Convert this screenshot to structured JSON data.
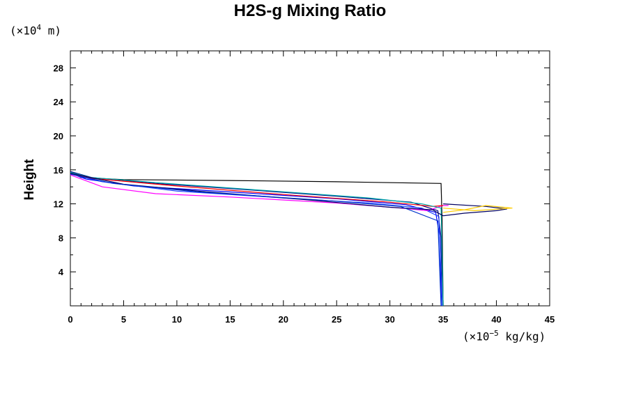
{
  "chart_data": {
    "type": "line",
    "title": "H2S-g Mixing Ratio",
    "ylabel": "Height",
    "y_unit_prefix": "(×10",
    "y_unit_exp": "4",
    "y_unit_suffix": " m)",
    "x_unit_prefix": "(×10",
    "x_unit_exp": "−5",
    "x_unit_suffix": " kg/kg)",
    "xlim": [
      0,
      45
    ],
    "ylim": [
      0,
      30
    ],
    "x_ticks": [
      0,
      5,
      10,
      15,
      20,
      25,
      30,
      35,
      40,
      45
    ],
    "y_ticks": [
      4,
      8,
      12,
      16,
      20,
      24,
      28
    ],
    "grid": false,
    "series": [
      {
        "color": "#000000",
        "points": [
          [
            0,
            15.7
          ],
          [
            1,
            15.1
          ],
          [
            5,
            14.85
          ],
          [
            15,
            14.75
          ],
          [
            25,
            14.6
          ],
          [
            34.8,
            14.4
          ],
          [
            34.9,
            10
          ],
          [
            35,
            0
          ]
        ]
      },
      {
        "color": "#000080",
        "points": [
          [
            0,
            15.8
          ],
          [
            2,
            15.1
          ],
          [
            8,
            14.4
          ],
          [
            15,
            13.8
          ],
          [
            25,
            12.9
          ],
          [
            32,
            12.2
          ],
          [
            34.5,
            11.2
          ],
          [
            34.8,
            8
          ],
          [
            34.9,
            0
          ]
        ]
      },
      {
        "color": "#0000ff",
        "points": [
          [
            0,
            15.6
          ],
          [
            1.5,
            14.9
          ],
          [
            6,
            14.1
          ],
          [
            15,
            13.4
          ],
          [
            25,
            12.6
          ],
          [
            31.5,
            11.9
          ],
          [
            34.3,
            11.0
          ],
          [
            34.7,
            8
          ],
          [
            34.8,
            0
          ]
        ]
      },
      {
        "color": "#1e40ff",
        "points": [
          [
            0,
            15.5
          ],
          [
            3,
            14.6
          ],
          [
            10,
            13.5
          ],
          [
            20,
            12.7
          ],
          [
            28,
            12.1
          ],
          [
            33,
            11.5
          ],
          [
            34.6,
            10.5
          ],
          [
            34.9,
            0
          ]
        ]
      },
      {
        "color": "#ff00ff",
        "points": [
          [
            0,
            15.4
          ],
          [
            3,
            14.0
          ],
          [
            8,
            13.2
          ],
          [
            15,
            12.8
          ],
          [
            25,
            12.1
          ],
          [
            31,
            11.5
          ],
          [
            33.5,
            11.2
          ],
          [
            35,
            11.8
          ],
          [
            35.5,
            11.8
          ]
        ]
      },
      {
        "color": "#ff0000",
        "points": [
          [
            0,
            15.6
          ],
          [
            2,
            15.0
          ],
          [
            10,
            14.1
          ],
          [
            20,
            13.1
          ],
          [
            30,
            12.2
          ],
          [
            34,
            11.7
          ],
          [
            35,
            11.8
          ]
        ]
      },
      {
        "color": "#00aaaa",
        "points": [
          [
            0,
            15.7
          ],
          [
            2,
            15.1
          ],
          [
            8,
            14.5
          ],
          [
            18,
            13.6
          ],
          [
            28,
            12.7
          ],
          [
            33,
            12.0
          ],
          [
            34.8,
            11.5
          ],
          [
            35,
            0
          ]
        ]
      },
      {
        "color": "#000060",
        "points": [
          [
            0,
            15.6
          ],
          [
            5,
            14.3
          ],
          [
            12,
            13.5
          ],
          [
            22,
            12.5
          ],
          [
            30,
            11.6
          ],
          [
            34,
            11.3
          ],
          [
            35,
            10.6
          ],
          [
            37,
            10.9
          ],
          [
            40,
            11.2
          ],
          [
            41,
            11.4
          ],
          [
            39,
            11.7
          ],
          [
            35,
            12.0
          ]
        ]
      },
      {
        "color": "#ffcc00",
        "points": [
          [
            35,
            11.0
          ],
          [
            37,
            11.3
          ],
          [
            39,
            11.8
          ],
          [
            41.5,
            11.5
          ],
          [
            38,
            11.2
          ],
          [
            35,
            11.5
          ]
        ]
      },
      {
        "color": "#0033cc",
        "points": [
          [
            0,
            15.5
          ],
          [
            4,
            14.4
          ],
          [
            12,
            13.4
          ],
          [
            24,
            12.4
          ],
          [
            31,
            11.7
          ],
          [
            34.5,
            10.0
          ],
          [
            34.8,
            0
          ]
        ]
      }
    ]
  }
}
